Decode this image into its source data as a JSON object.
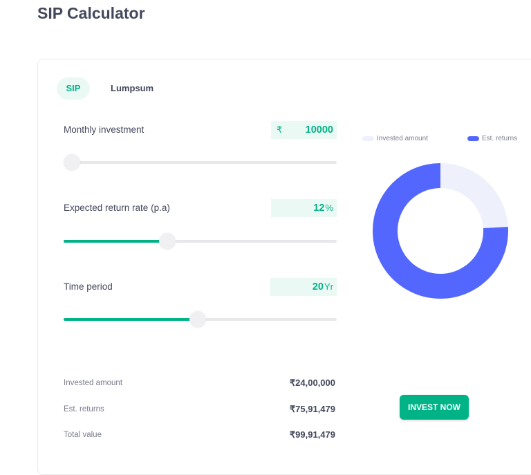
{
  "page": {
    "title": "SIP Calculator"
  },
  "tabs": [
    {
      "label": "SIP",
      "active": true
    },
    {
      "label": "Lumpsum",
      "active": false
    }
  ],
  "inputs": {
    "monthly": {
      "label": "Monthly investment",
      "prefix": "₹",
      "value": "10000",
      "slider_fraction": 0.01
    },
    "rate": {
      "label": "Expected return rate (p.a)",
      "value": "12",
      "unit": "%",
      "slider_fraction": 0.38
    },
    "period": {
      "label": "Time period",
      "value": "20",
      "unit": "Yr",
      "slider_fraction": 0.49
    }
  },
  "legend": [
    {
      "label": "Invested amount",
      "color": "#eef0fc"
    },
    {
      "label": "Est. returns",
      "color": "#5367ff"
    }
  ],
  "chart_data": {
    "type": "pie",
    "labels": [
      "Invested amount",
      "Est. returns"
    ],
    "values": [
      2400000,
      7591479
    ],
    "colors": [
      "#eef0fc",
      "#5367ff"
    ]
  },
  "summary": [
    {
      "label": "Invested amount",
      "value": "₹24,00,000"
    },
    {
      "label": "Est. returns",
      "value": "₹75,91,479"
    },
    {
      "label": "Total value",
      "value": "₹99,91,479"
    }
  ],
  "cta": {
    "label": "INVEST NOW"
  },
  "colors": {
    "accent": "#00b386",
    "accent_light": "#ebf9f5",
    "returns": "#5367ff",
    "invested": "#eef0fc"
  }
}
